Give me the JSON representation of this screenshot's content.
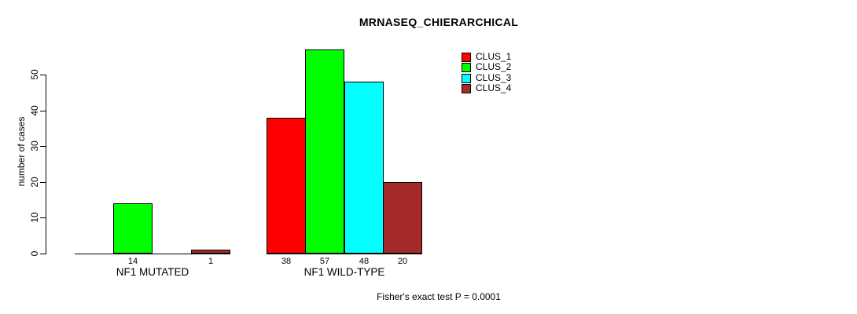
{
  "title": "MRNASEQ_CHIERARCHICAL",
  "footer": "Fisher's exact test P = 0.0001",
  "chart_data": {
    "type": "bar",
    "title": "MRNASEQ_CHIERARCHICAL",
    "xlabel": "",
    "ylabel": "number of cases",
    "ylim": [
      0,
      50
    ],
    "yticks": [
      0,
      10,
      20,
      30,
      40,
      50
    ],
    "grid": false,
    "legend_position": "top-right",
    "categories": [
      "NF1 MUTATED",
      "NF1 WILD-TYPE"
    ],
    "series": [
      {
        "name": "CLUS_1",
        "color": "#FF0000",
        "values": [
          0,
          38
        ],
        "labels": [
          "",
          "38"
        ]
      },
      {
        "name": "CLUS_2",
        "color": "#00FF00",
        "values": [
          14,
          57
        ],
        "labels": [
          "14",
          "57"
        ]
      },
      {
        "name": "CLUS_3",
        "color": "#00FFFF",
        "values": [
          0,
          48
        ],
        "labels": [
          "",
          "48"
        ]
      },
      {
        "name": "CLUS_4",
        "color": "#A52A2A",
        "values": [
          1,
          20
        ],
        "labels": [
          "1",
          "20"
        ]
      }
    ],
    "annotation": "Fisher's exact test P = 0.0001"
  }
}
